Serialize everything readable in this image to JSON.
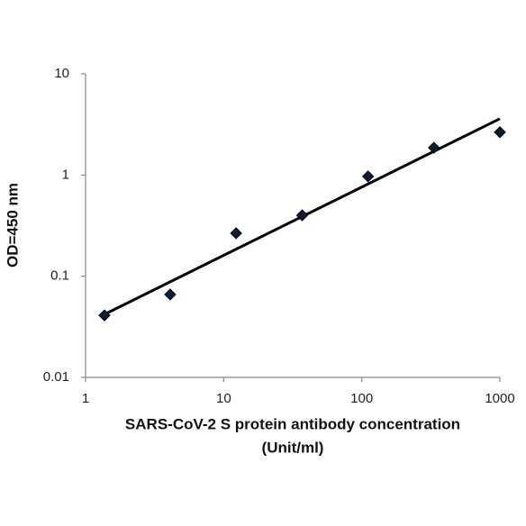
{
  "chart_data": {
    "type": "scatter",
    "log_x": true,
    "log_y": true,
    "grid": false,
    "xlabel": [
      "SARS-CoV-2 S protein antibody concentration",
      "(Unit/ml)"
    ],
    "ylabel": "OD=450 nm",
    "x": [
      1.37,
      4.1,
      12.3,
      37,
      111,
      333,
      1000
    ],
    "values": [
      0.041,
      0.066,
      0.266,
      0.4,
      0.97,
      1.86,
      2.65
    ],
    "color": "#0d1b3a",
    "trendline": {
      "x": [
        1.37,
        1000
      ],
      "values": [
        0.042,
        3.6
      ],
      "color": "#000000"
    },
    "xlim": [
      1,
      1000
    ],
    "xticks": [
      1,
      10,
      100,
      1000
    ],
    "ylim": [
      0.01,
      10
    ],
    "yticks": [
      0.01,
      0.1,
      1,
      10
    ]
  }
}
